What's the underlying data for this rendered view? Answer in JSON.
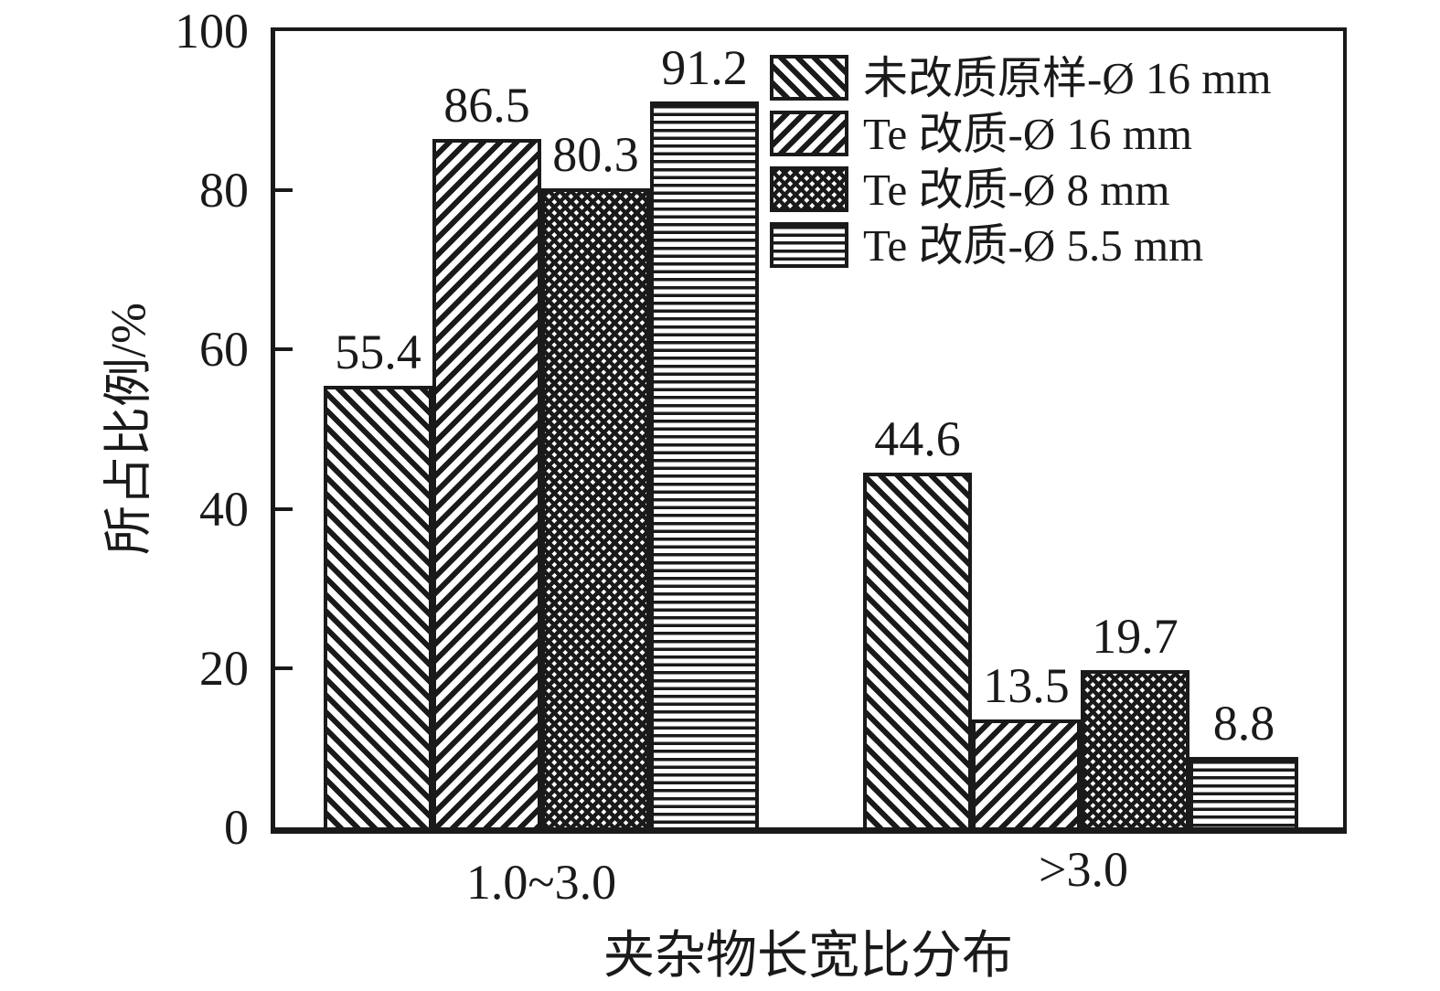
{
  "figure": {
    "background_color": "#ffffff",
    "ink_color": "#1a1a1a"
  },
  "chart_data": {
    "type": "bar",
    "title": "",
    "xlabel": "夹杂物长宽比分布",
    "ylabel": "所占比例/%",
    "ylim": [
      0,
      100
    ],
    "yticks": [
      0,
      20,
      40,
      60,
      80,
      100
    ],
    "grid": false,
    "legend_position": "top-right",
    "value_labels": true,
    "categories": [
      "1.0~3.0",
      ">3.0"
    ],
    "series": [
      {
        "name": "未改质原样-Ø 16 mm",
        "pattern": "diagonal-forward",
        "values": [
          55.4,
          44.6
        ]
      },
      {
        "name": "Te 改质-Ø 16 mm",
        "pattern": "diagonal-backward",
        "values": [
          86.5,
          13.5
        ]
      },
      {
        "name": "Te 改质-Ø 8 mm",
        "pattern": "crosshatch",
        "values": [
          80.3,
          19.7
        ]
      },
      {
        "name": "Te 改质-Ø 5.5 mm",
        "pattern": "horizontal-lines",
        "values": [
          91.2,
          8.8
        ]
      }
    ]
  }
}
